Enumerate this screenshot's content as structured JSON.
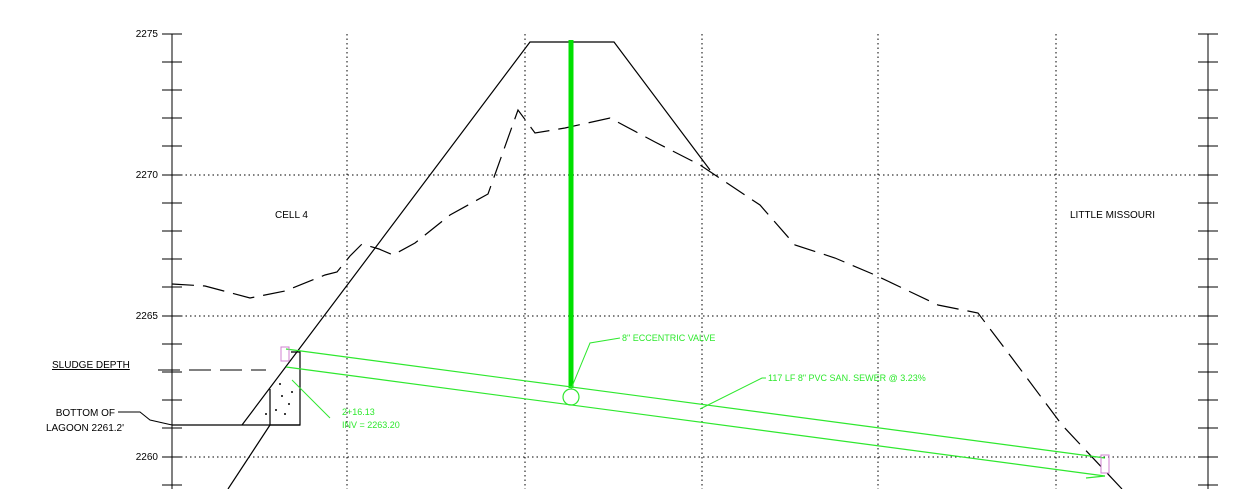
{
  "colors": {
    "linework": "#000000",
    "pipe": "#2ee82e",
    "valve_stem": "#00e000",
    "grid": "#000000",
    "background": "#ffffff"
  },
  "elevation_ticks": [
    "2275",
    "2270",
    "2265",
    "2260"
  ],
  "labels": {
    "cell": "CELL 4",
    "river": "LITTLE MISSOURI",
    "sludge": "SLUDGE DEPTH",
    "bottom_line1": "BOTTOM OF",
    "bottom_line2": "LAGOON 2261.2'"
  },
  "callouts": {
    "valve": "8\" ECCENTRIC VALVE",
    "pipe": "117 LF 8\" PVC SAN. SEWER @ 3.23%",
    "station": "2+16.13",
    "invert": "INV = 2263.20"
  }
}
